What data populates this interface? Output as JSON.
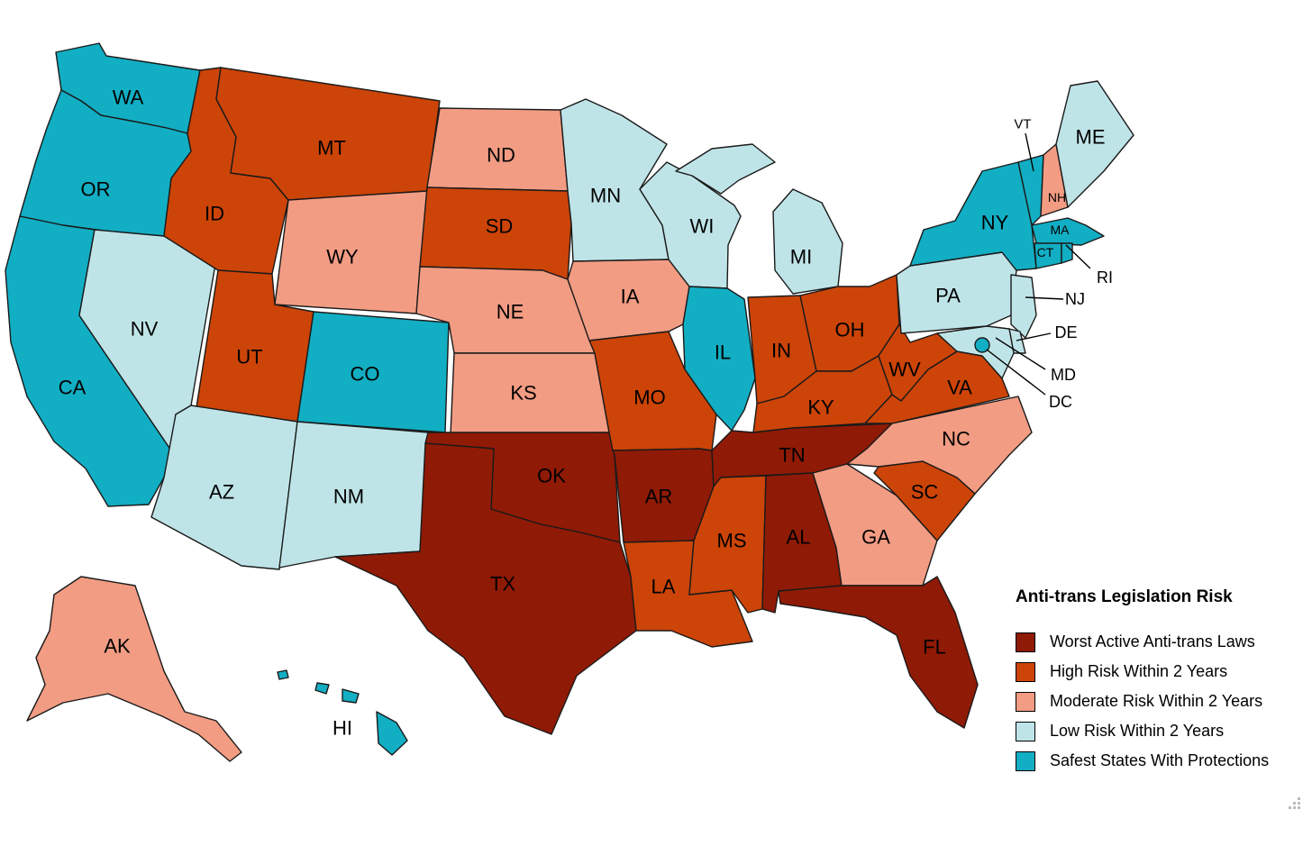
{
  "legend": {
    "title": "Anti-trans Legislation Risk",
    "items": [
      {
        "key": "worst",
        "label": "Worst Active Anti-trans Laws",
        "color": "#8f1a06"
      },
      {
        "key": "high",
        "label": "High Risk Within 2 Years",
        "color": "#cc4408"
      },
      {
        "key": "moderate",
        "label": "Moderate Risk Within 2 Years",
        "color": "#f29c83"
      },
      {
        "key": "low",
        "label": "Low Risk Within 2 Years",
        "color": "#bfe4e8"
      },
      {
        "key": "safest",
        "label": "Safest States With Protections",
        "color": "#12aec3"
      }
    ]
  },
  "states": {
    "WA": {
      "label": "WA",
      "risk": "safest"
    },
    "OR": {
      "label": "OR",
      "risk": "safest"
    },
    "CA": {
      "label": "CA",
      "risk": "safest"
    },
    "NV": {
      "label": "NV",
      "risk": "low"
    },
    "ID": {
      "label": "ID",
      "risk": "high"
    },
    "MT": {
      "label": "MT",
      "risk": "high"
    },
    "WY": {
      "label": "WY",
      "risk": "moderate"
    },
    "UT": {
      "label": "UT",
      "risk": "high"
    },
    "CO": {
      "label": "CO",
      "risk": "safest"
    },
    "AZ": {
      "label": "AZ",
      "risk": "low"
    },
    "NM": {
      "label": "NM",
      "risk": "low"
    },
    "ND": {
      "label": "ND",
      "risk": "moderate"
    },
    "SD": {
      "label": "SD",
      "risk": "high"
    },
    "NE": {
      "label": "NE",
      "risk": "moderate"
    },
    "KS": {
      "label": "KS",
      "risk": "moderate"
    },
    "OK": {
      "label": "OK",
      "risk": "worst"
    },
    "TX": {
      "label": "TX",
      "risk": "worst"
    },
    "MN": {
      "label": "MN",
      "risk": "low"
    },
    "IA": {
      "label": "IA",
      "risk": "moderate"
    },
    "MO": {
      "label": "MO",
      "risk": "high"
    },
    "AR": {
      "label": "AR",
      "risk": "worst"
    },
    "LA": {
      "label": "LA",
      "risk": "high"
    },
    "WI": {
      "label": "WI",
      "risk": "low"
    },
    "IL": {
      "label": "IL",
      "risk": "safest"
    },
    "MI": {
      "label": "MI",
      "risk": "low"
    },
    "IN": {
      "label": "IN",
      "risk": "high"
    },
    "OH": {
      "label": "OH",
      "risk": "high"
    },
    "KY": {
      "label": "KY",
      "risk": "high"
    },
    "TN": {
      "label": "TN",
      "risk": "worst"
    },
    "MS": {
      "label": "MS",
      "risk": "high"
    },
    "AL": {
      "label": "AL",
      "risk": "worst"
    },
    "GA": {
      "label": "GA",
      "risk": "moderate"
    },
    "FL": {
      "label": "FL",
      "risk": "worst"
    },
    "SC": {
      "label": "SC",
      "risk": "high"
    },
    "NC": {
      "label": "NC",
      "risk": "moderate"
    },
    "VA": {
      "label": "VA",
      "risk": "high"
    },
    "WV": {
      "label": "WV",
      "risk": "high"
    },
    "PA": {
      "label": "PA",
      "risk": "low"
    },
    "NY": {
      "label": "NY",
      "risk": "safest"
    },
    "VT": {
      "label": "VT",
      "risk": "safest"
    },
    "NH": {
      "label": "NH",
      "risk": "moderate"
    },
    "ME": {
      "label": "ME",
      "risk": "low"
    },
    "MA": {
      "label": "MA",
      "risk": "safest"
    },
    "CT": {
      "label": "CT",
      "risk": "safest"
    },
    "RI": {
      "label": "RI",
      "risk": "safest"
    },
    "NJ": {
      "label": "NJ",
      "risk": "low"
    },
    "DE": {
      "label": "DE",
      "risk": "low"
    },
    "MD": {
      "label": "MD",
      "risk": "low"
    },
    "DC": {
      "label": "DC",
      "risk": "safest"
    },
    "AK": {
      "label": "AK",
      "risk": "moderate"
    },
    "HI": {
      "label": "HI",
      "risk": "safest"
    }
  }
}
